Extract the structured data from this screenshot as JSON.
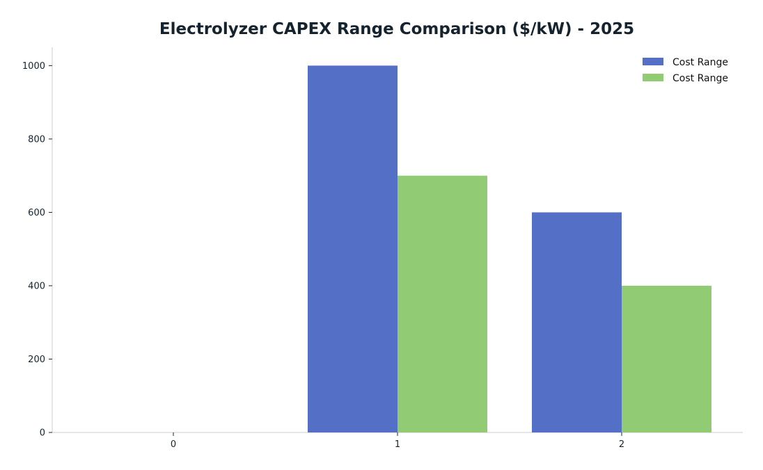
{
  "chart_data": {
    "type": "bar",
    "title": "Electrolyzer CAPEX Range Comparison ($/kW) - 2025",
    "xlabel": "",
    "ylabel": "",
    "categories": [
      "0",
      "1",
      "2"
    ],
    "series": [
      {
        "name": "Cost Range",
        "values": [
          0,
          1000,
          600
        ],
        "color": "#5470c6"
      },
      {
        "name": "Cost Range",
        "values": [
          0,
          700,
          400
        ],
        "color": "#91cc75"
      }
    ],
    "ylim": [
      0,
      1050
    ],
    "yticks": [
      0,
      200,
      400,
      600,
      800,
      1000
    ],
    "grid": false,
    "legend_position": "top-right"
  }
}
